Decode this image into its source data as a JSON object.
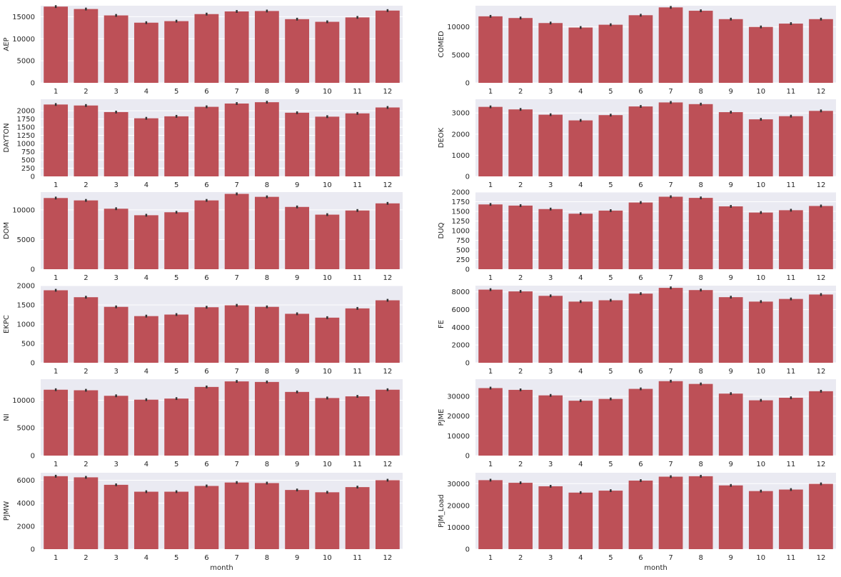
{
  "chart_data": [
    {
      "type": "bar",
      "xlabel": "",
      "ylabel": "AEP",
      "categories": [
        "1",
        "2",
        "3",
        "4",
        "5",
        "6",
        "7",
        "8",
        "9",
        "10",
        "11",
        "12"
      ],
      "values": [
        17300,
        16750,
        15300,
        13650,
        14000,
        15600,
        16200,
        16300,
        14450,
        13850,
        14850,
        16400
      ],
      "ylim": [
        0,
        17500
      ],
      "yticks": [
        0,
        5000,
        10000,
        15000
      ],
      "error_bars": true
    },
    {
      "type": "bar",
      "xlabel": "",
      "ylabel": "COMED",
      "categories": [
        "1",
        "2",
        "3",
        "4",
        "5",
        "6",
        "7",
        "8",
        "9",
        "10",
        "11",
        "12"
      ],
      "values": [
        11900,
        11600,
        10700,
        9900,
        10400,
        12100,
        13500,
        12900,
        11400,
        10000,
        10600,
        11400
      ],
      "ylim": [
        0,
        13800
      ],
      "yticks": [
        0,
        5000,
        10000
      ],
      "error_bars": true
    },
    {
      "type": "bar",
      "xlabel": "",
      "ylabel": "DAYTON",
      "categories": [
        "1",
        "2",
        "3",
        "4",
        "5",
        "6",
        "7",
        "8",
        "9",
        "10",
        "11",
        "12"
      ],
      "values": [
        2190,
        2160,
        1960,
        1770,
        1830,
        2120,
        2220,
        2260,
        1940,
        1820,
        1920,
        2100
      ],
      "ylim": [
        0,
        2350
      ],
      "yticks": [
        0,
        250,
        500,
        750,
        1000,
        1250,
        1500,
        1750,
        2000
      ],
      "error_bars": true
    },
    {
      "type": "bar",
      "xlabel": "",
      "ylabel": "DEOK",
      "categories": [
        "1",
        "2",
        "3",
        "4",
        "5",
        "6",
        "7",
        "8",
        "9",
        "10",
        "11",
        "12"
      ],
      "values": [
        3290,
        3170,
        2920,
        2650,
        2900,
        3310,
        3500,
        3420,
        3040,
        2700,
        2850,
        3100
      ],
      "ylim": [
        0,
        3650
      ],
      "yticks": [
        0,
        1000,
        2000,
        3000
      ],
      "error_bars": true
    },
    {
      "type": "bar",
      "xlabel": "",
      "ylabel": "DOM",
      "categories": [
        "1",
        "2",
        "3",
        "4",
        "5",
        "6",
        "7",
        "8",
        "9",
        "10",
        "11",
        "12"
      ],
      "values": [
        12000,
        11600,
        10200,
        9100,
        9600,
        11600,
        12700,
        12200,
        10500,
        9200,
        9900,
        11100
      ],
      "ylim": [
        0,
        13000
      ],
      "yticks": [
        0,
        5000,
        10000
      ],
      "error_bars": true
    },
    {
      "type": "bar",
      "xlabel": "",
      "ylabel": "DUQ",
      "categories": [
        "1",
        "2",
        "3",
        "4",
        "5",
        "6",
        "7",
        "8",
        "9",
        "10",
        "11",
        "12"
      ],
      "values": [
        1680,
        1650,
        1560,
        1440,
        1520,
        1730,
        1880,
        1850,
        1630,
        1470,
        1530,
        1640
      ],
      "ylim": [
        0,
        2000
      ],
      "yticks": [
        0,
        250,
        500,
        750,
        1000,
        1250,
        1500,
        1750,
        2000
      ],
      "error_bars": true
    },
    {
      "type": "bar",
      "xlabel": "",
      "ylabel": "EKPC",
      "categories": [
        "1",
        "2",
        "3",
        "4",
        "5",
        "6",
        "7",
        "8",
        "9",
        "10",
        "11",
        "12"
      ],
      "values": [
        1880,
        1700,
        1450,
        1210,
        1250,
        1440,
        1490,
        1450,
        1270,
        1170,
        1410,
        1620
      ],
      "ylim": [
        0,
        2000
      ],
      "yticks": [
        0,
        500,
        1000,
        1500,
        2000
      ],
      "error_bars": true
    },
    {
      "type": "bar",
      "xlabel": "",
      "ylabel": "FE",
      "categories": [
        "1",
        "2",
        "3",
        "4",
        "5",
        "6",
        "7",
        "8",
        "9",
        "10",
        "11",
        "12"
      ],
      "values": [
        8250,
        8050,
        7550,
        6900,
        7050,
        7800,
        8450,
        8200,
        7400,
        6900,
        7200,
        7700
      ],
      "ylim": [
        0,
        8700
      ],
      "yticks": [
        0,
        2000,
        4000,
        6000,
        8000
      ],
      "error_bars": true
    },
    {
      "type": "bar",
      "xlabel": "",
      "ylabel": "NI",
      "categories": [
        "1",
        "2",
        "3",
        "4",
        "5",
        "6",
        "7",
        "8",
        "9",
        "10",
        "11",
        "12"
      ],
      "values": [
        11900,
        11800,
        10800,
        10100,
        10300,
        12400,
        13400,
        13300,
        11500,
        10400,
        10700,
        11900
      ],
      "ylim": [
        0,
        13800
      ],
      "yticks": [
        0,
        5000,
        10000
      ],
      "error_bars": true
    },
    {
      "type": "bar",
      "xlabel": "",
      "ylabel": "PJME",
      "categories": [
        "1",
        "2",
        "3",
        "4",
        "5",
        "6",
        "7",
        "8",
        "9",
        "10",
        "11",
        "12"
      ],
      "values": [
        34200,
        33300,
        30500,
        27800,
        28700,
        33800,
        37700,
        36300,
        31400,
        28000,
        29300,
        32600
      ],
      "ylim": [
        0,
        38700
      ],
      "yticks": [
        0,
        10000,
        20000,
        30000
      ],
      "error_bars": true
    },
    {
      "type": "bar",
      "xlabel": "month",
      "ylabel": "PJMW",
      "categories": [
        "1",
        "2",
        "3",
        "4",
        "5",
        "6",
        "7",
        "8",
        "9",
        "10",
        "11",
        "12"
      ],
      "values": [
        6350,
        6250,
        5600,
        5000,
        5000,
        5500,
        5800,
        5750,
        5150,
        4950,
        5400,
        6000
      ],
      "ylim": [
        0,
        6650
      ],
      "yticks": [
        0,
        2000,
        4000,
        6000
      ],
      "error_bars": true
    },
    {
      "type": "bar",
      "xlabel": "month",
      "ylabel": "PJM_Load",
      "categories": [
        "1",
        "2",
        "3",
        "4",
        "5",
        "6",
        "7",
        "8",
        "9",
        "10",
        "11",
        "12"
      ],
      "values": [
        31600,
        30400,
        28800,
        25900,
        26800,
        31400,
        33200,
        33400,
        29200,
        26600,
        27300,
        29900
      ],
      "ylim": [
        0,
        35000
      ],
      "yticks": [
        0,
        10000,
        20000,
        30000
      ],
      "error_bars": true
    }
  ],
  "style": {
    "bar_color": "#bd5057",
    "panel_bg": "#eaeaf2",
    "grid_color": "#ffffff",
    "errorbar_color": "#333333",
    "text_color": "#262626"
  }
}
